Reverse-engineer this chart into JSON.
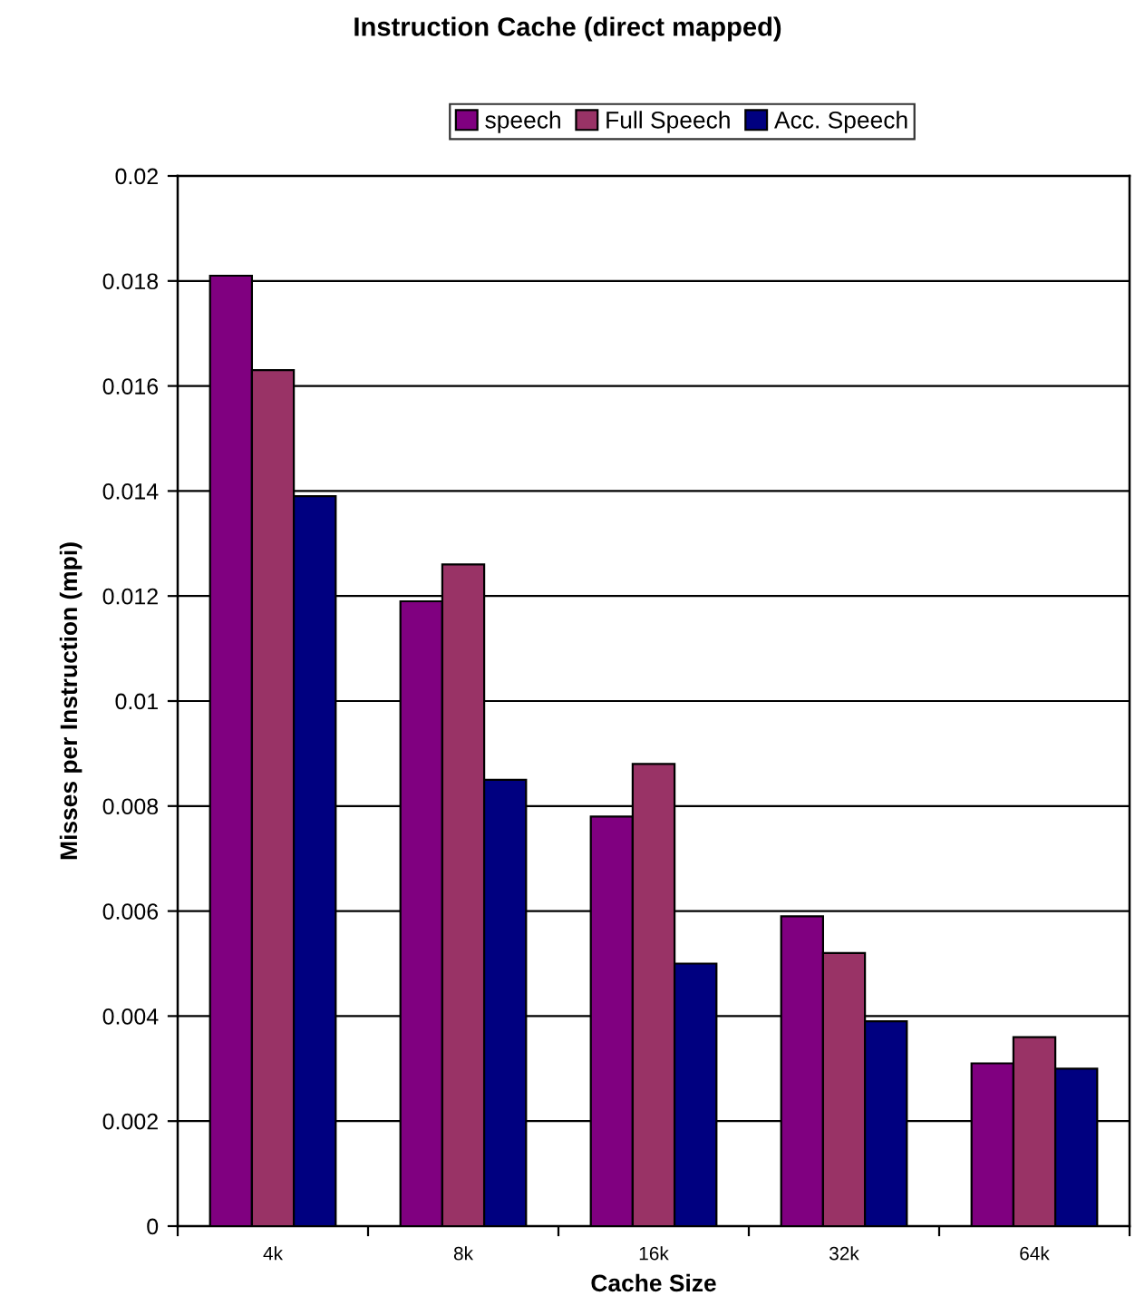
{
  "chart_data": {
    "type": "bar",
    "title": "Instruction Cache (direct mapped)",
    "xlabel": "Cache Size",
    "ylabel": "Misses per Instruction (mpi)",
    "categories": [
      "4k",
      "8k",
      "16k",
      "32k",
      "64k"
    ],
    "series": [
      {
        "name": "speech",
        "color": "#800080",
        "values": [
          0.0181,
          0.0119,
          0.0078,
          0.0059,
          0.0031
        ]
      },
      {
        "name": "Full Speech",
        "color": "#993366",
        "values": [
          0.0163,
          0.0126,
          0.0088,
          0.0052,
          0.0036
        ]
      },
      {
        "name": "Acc. Speech",
        "color": "#000080",
        "values": [
          0.0139,
          0.0085,
          0.005,
          0.0039,
          0.003
        ]
      }
    ],
    "ylim": [
      0,
      0.02
    ],
    "yticks": [
      0,
      0.002,
      0.004,
      0.006,
      0.008,
      0.01,
      0.012,
      0.014,
      0.016,
      0.018,
      0.02
    ],
    "grid": "y",
    "legend": "top"
  }
}
